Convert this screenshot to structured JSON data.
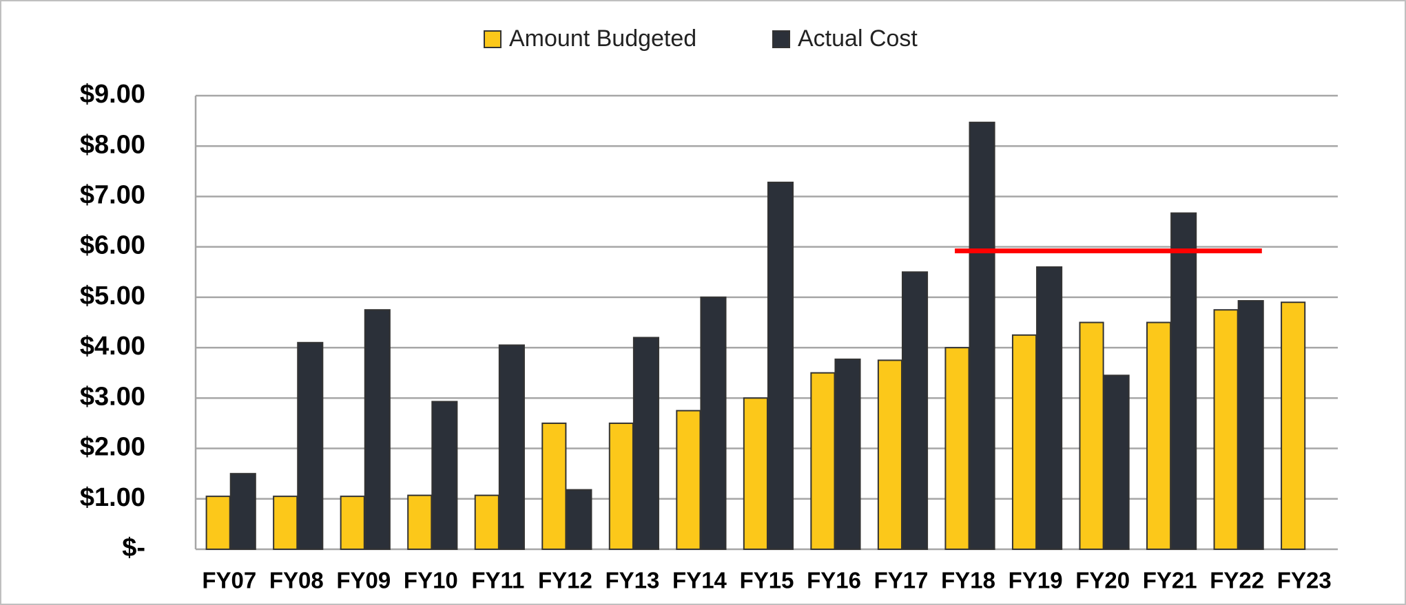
{
  "chart_data": {
    "type": "bar",
    "categories": [
      "FY07",
      "FY08",
      "FY09",
      "FY10",
      "FY11",
      "FY12",
      "FY13",
      "FY14",
      "FY15",
      "FY16",
      "FY17",
      "FY18",
      "FY19",
      "FY20",
      "FY21",
      "FY22",
      "FY23"
    ],
    "series": [
      {
        "name": "Amount Budgeted",
        "color": "#fcc81a",
        "values": [
          1.05,
          1.05,
          1.05,
          1.07,
          1.07,
          2.5,
          2.5,
          2.75,
          3.0,
          3.5,
          3.75,
          4.0,
          4.25,
          4.5,
          4.5,
          4.75,
          4.9
        ]
      },
      {
        "name": "Actual Cost",
        "color": "#2b3039",
        "values": [
          1.5,
          4.1,
          4.75,
          2.93,
          4.05,
          1.18,
          4.2,
          5.0,
          7.28,
          3.77,
          5.5,
          8.47,
          5.6,
          3.45,
          6.67,
          4.93,
          null
        ]
      }
    ],
    "ylim": [
      0,
      9
    ],
    "yticks": [
      {
        "value": 0,
        "label": "$-"
      },
      {
        "value": 1,
        "label": "$1.00"
      },
      {
        "value": 2,
        "label": "$2.00"
      },
      {
        "value": 3,
        "label": "$3.00"
      },
      {
        "value": 4,
        "label": "$4.00"
      },
      {
        "value": 5,
        "label": "$5.00"
      },
      {
        "value": 6,
        "label": "$6.00"
      },
      {
        "value": 7,
        "label": "$7.00"
      },
      {
        "value": 8,
        "label": "$8.00"
      },
      {
        "value": 9,
        "label": "$9.00"
      }
    ],
    "grid": true,
    "legend": "top",
    "reference_line": {
      "value": 5.92,
      "color": "#ff0000",
      "from": "FY18",
      "to": "FY22"
    }
  }
}
